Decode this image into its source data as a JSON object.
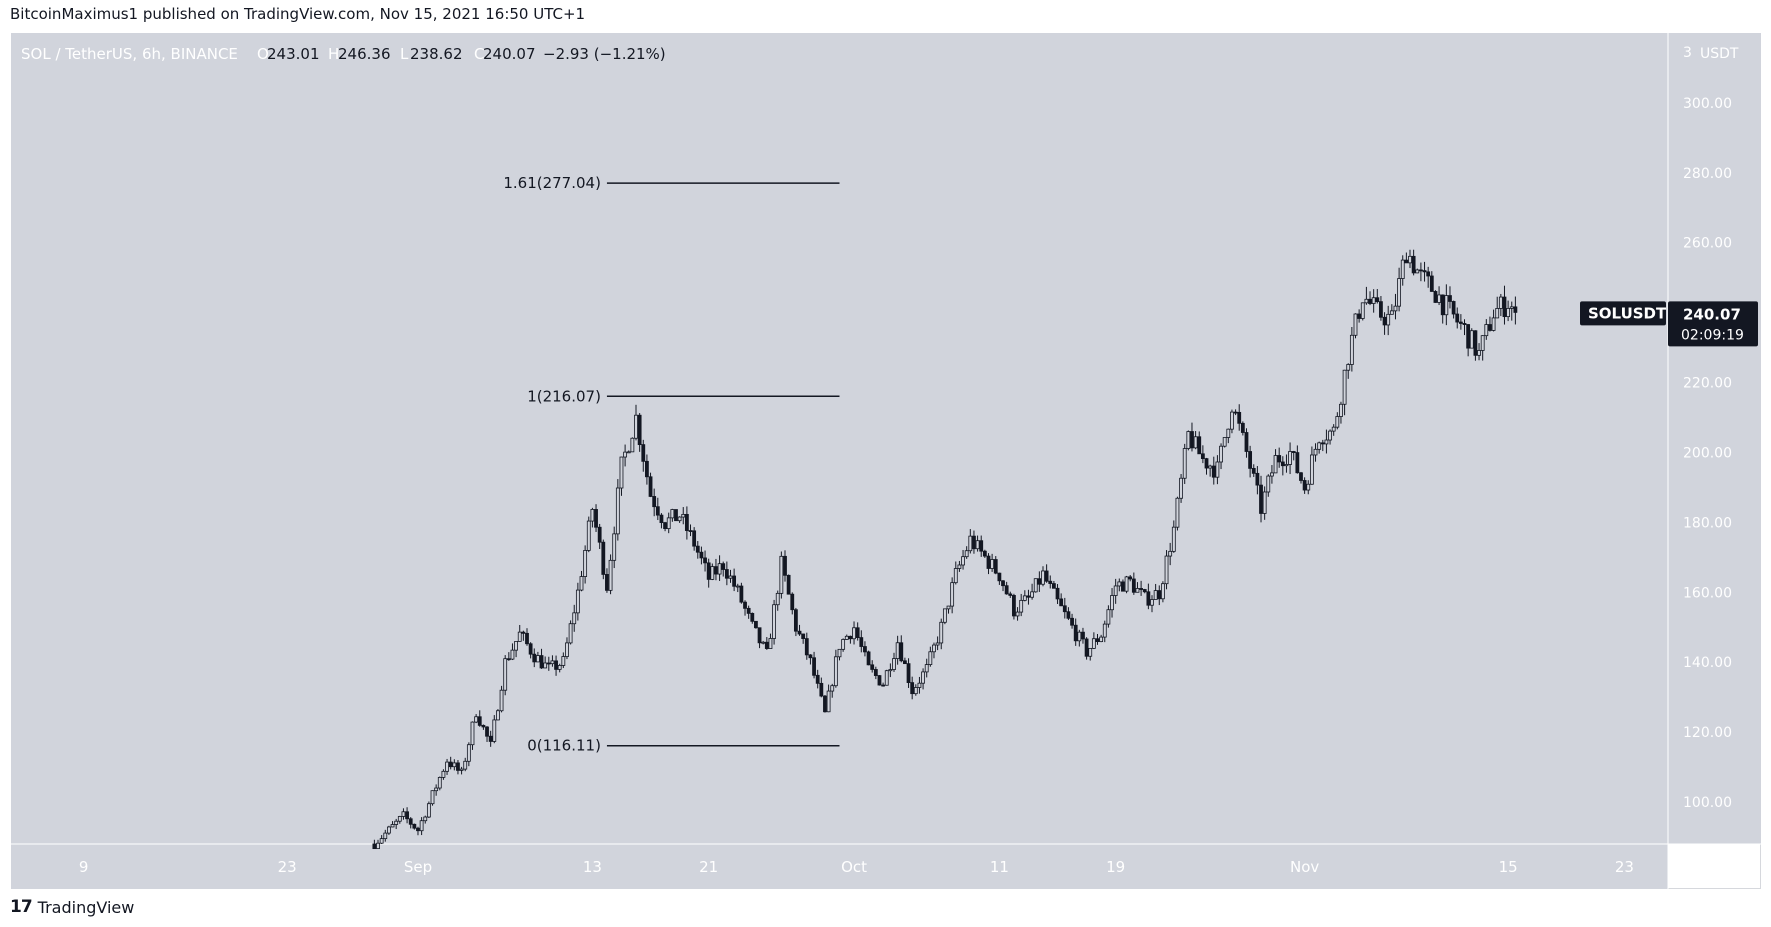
{
  "header": {
    "published": "BitcoinMaximus1 published on TradingView.com, Nov 15, 2021 16:50 UTC+1"
  },
  "legend": {
    "symbol": "SOL / TetherUS, 6h, BINANCE",
    "o_label": "O",
    "o_value": "243.01",
    "h_label": "H",
    "h_value": "246.36",
    "l_label": "L",
    "l_value": "238.62",
    "c_label": "C",
    "c_value": "240.07",
    "change": "−2.93 (−1.21%)"
  },
  "price_scale": {
    "currency": "USDT",
    "corner_mark": "3"
  },
  "last_price": {
    "symbol": "SOLUSDT",
    "price": "240.07",
    "countdown": "02:09:19",
    "value": 240.07
  },
  "footer": {
    "logo_mark": "17",
    "brand": "TradingView"
  },
  "colors": {
    "background": "#d1d4dc",
    "candle": "#131722",
    "axis_text": "#ffffff",
    "tag_bg": "#131722"
  },
  "chart_data": {
    "type": "candlestick",
    "title": "SOL / TetherUS, 6h, BINANCE",
    "x_range": [
      "2021-08-04",
      "2021-11-26"
    ],
    "ylim": [
      88,
      320
    ],
    "y_ticks": [
      100,
      120,
      140,
      160,
      180,
      200,
      220,
      240,
      260,
      280,
      300
    ],
    "x_ticks": [
      {
        "label": "9",
        "date": "2021-08-09"
      },
      {
        "label": "23",
        "date": "2021-08-23"
      },
      {
        "label": "Sep",
        "date": "2021-09-01"
      },
      {
        "label": "13",
        "date": "2021-09-13"
      },
      {
        "label": "21",
        "date": "2021-09-21"
      },
      {
        "label": "Oct",
        "date": "2021-10-01"
      },
      {
        "label": "11",
        "date": "2021-10-11"
      },
      {
        "label": "19",
        "date": "2021-10-19"
      },
      {
        "label": "Nov",
        "date": "2021-11-01"
      },
      {
        "label": "15",
        "date": "2021-11-15"
      },
      {
        "label": "23",
        "date": "2021-11-23"
      }
    ],
    "fibonacci": [
      {
        "label": "1.61(277.04)",
        "value": 277.04
      },
      {
        "label": "1(216.07)",
        "value": 216.07
      },
      {
        "label": "0(116.11)",
        "value": 116.11
      }
    ],
    "fib_range": [
      "2021-09-14",
      "2021-09-30"
    ],
    "candle_interval_hours": 6,
    "path_start": "2021-08-29",
    "path": [
      {
        "d": "2021-08-29",
        "v": 88
      },
      {
        "d": "2021-08-31",
        "v": 96
      },
      {
        "d": "2021-09-01",
        "v": 92
      },
      {
        "d": "2021-09-03",
        "v": 112
      },
      {
        "d": "2021-09-04",
        "v": 108
      },
      {
        "d": "2021-09-05",
        "v": 126
      },
      {
        "d": "2021-09-06",
        "v": 116
      },
      {
        "d": "2021-09-07",
        "v": 140
      },
      {
        "d": "2021-09-08",
        "v": 148
      },
      {
        "d": "2021-09-09",
        "v": 142
      },
      {
        "d": "2021-09-10",
        "v": 138
      },
      {
        "d": "2021-09-11",
        "v": 140
      },
      {
        "d": "2021-09-12",
        "v": 160
      },
      {
        "d": "2021-09-13",
        "v": 184
      },
      {
        "d": "2021-09-14",
        "v": 162
      },
      {
        "d": "2021-09-15",
        "v": 196
      },
      {
        "d": "2021-09-16",
        "v": 210
      },
      {
        "d": "2021-09-17",
        "v": 188
      },
      {
        "d": "2021-09-18",
        "v": 180
      },
      {
        "d": "2021-09-19",
        "v": 182
      },
      {
        "d": "2021-09-20",
        "v": 174
      },
      {
        "d": "2021-09-21",
        "v": 164
      },
      {
        "d": "2021-09-22",
        "v": 168
      },
      {
        "d": "2021-09-23",
        "v": 160
      },
      {
        "d": "2021-09-24",
        "v": 150
      },
      {
        "d": "2021-09-25",
        "v": 142
      },
      {
        "d": "2021-09-26",
        "v": 168
      },
      {
        "d": "2021-09-27",
        "v": 150
      },
      {
        "d": "2021-09-28",
        "v": 140
      },
      {
        "d": "2021-09-29",
        "v": 125
      },
      {
        "d": "2021-09-30",
        "v": 145
      },
      {
        "d": "2021-10-01",
        "v": 150
      },
      {
        "d": "2021-10-02",
        "v": 138
      },
      {
        "d": "2021-10-03",
        "v": 134
      },
      {
        "d": "2021-10-04",
        "v": 146
      },
      {
        "d": "2021-10-05",
        "v": 132
      },
      {
        "d": "2021-10-06",
        "v": 138
      },
      {
        "d": "2021-10-07",
        "v": 150
      },
      {
        "d": "2021-10-08",
        "v": 165
      },
      {
        "d": "2021-10-09",
        "v": 175
      },
      {
        "d": "2021-10-10",
        "v": 170
      },
      {
        "d": "2021-10-11",
        "v": 165
      },
      {
        "d": "2021-10-12",
        "v": 155
      },
      {
        "d": "2021-10-13",
        "v": 158
      },
      {
        "d": "2021-10-14",
        "v": 165
      },
      {
        "d": "2021-10-15",
        "v": 157
      },
      {
        "d": "2021-10-16",
        "v": 150
      },
      {
        "d": "2021-10-17",
        "v": 143
      },
      {
        "d": "2021-10-18",
        "v": 148
      },
      {
        "d": "2021-10-19",
        "v": 162
      },
      {
        "d": "2021-10-20",
        "v": 163
      },
      {
        "d": "2021-10-21",
        "v": 158
      },
      {
        "d": "2021-10-22",
        "v": 160
      },
      {
        "d": "2021-10-23",
        "v": 178
      },
      {
        "d": "2021-10-24",
        "v": 205
      },
      {
        "d": "2021-10-25",
        "v": 198
      },
      {
        "d": "2021-10-26",
        "v": 195
      },
      {
        "d": "2021-10-27",
        "v": 214
      },
      {
        "d": "2021-10-28",
        "v": 200
      },
      {
        "d": "2021-10-29",
        "v": 184
      },
      {
        "d": "2021-10-30",
        "v": 198
      },
      {
        "d": "2021-10-31",
        "v": 200
      },
      {
        "d": "2021-11-01",
        "v": 190
      },
      {
        "d": "2021-11-02",
        "v": 205
      },
      {
        "d": "2021-11-03",
        "v": 206
      },
      {
        "d": "2021-11-04",
        "v": 228
      },
      {
        "d": "2021-11-05",
        "v": 245
      },
      {
        "d": "2021-11-06",
        "v": 240
      },
      {
        "d": "2021-11-07",
        "v": 238
      },
      {
        "d": "2021-11-08",
        "v": 258
      },
      {
        "d": "2021-11-09",
        "v": 250
      },
      {
        "d": "2021-11-10",
        "v": 246
      },
      {
        "d": "2021-11-11",
        "v": 240
      },
      {
        "d": "2021-11-12",
        "v": 235
      },
      {
        "d": "2021-11-13",
        "v": 228
      },
      {
        "d": "2021-11-14",
        "v": 240
      },
      {
        "d": "2021-11-15",
        "v": 243
      },
      {
        "d": "2021-11-15T12:00",
        "v": 240.07
      }
    ]
  }
}
